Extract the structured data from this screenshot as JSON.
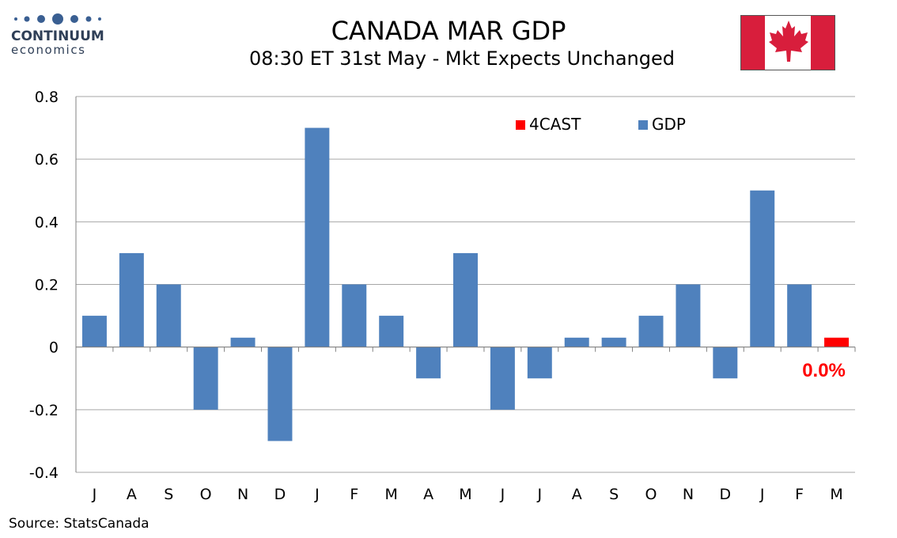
{
  "brand": {
    "name": "CONTINUUM",
    "sub": "economics"
  },
  "colors": {
    "gdp": "#4f81bd",
    "forecast": "#ff0000",
    "flag_red": "#d81e3c",
    "logo": "#3a5f92"
  },
  "icons": {
    "flag": "canada-flag-icon"
  },
  "footer": {
    "source": "Source: StatsCanada"
  },
  "chart_data": {
    "type": "bar",
    "title": "CANADA MAR GDP",
    "subtitle": "08:30 ET 31st May - Mkt Expects Unchanged",
    "categories": [
      "J",
      "A",
      "S",
      "O",
      "N",
      "D",
      "J",
      "F",
      "M",
      "A",
      "M",
      "J",
      "J",
      "A",
      "S",
      "O",
      "N",
      "D",
      "J",
      "F",
      "M"
    ],
    "series": [
      {
        "name": "4CAST",
        "color": "#ff0000",
        "values": [
          null,
          null,
          null,
          null,
          null,
          null,
          null,
          null,
          null,
          null,
          null,
          null,
          null,
          null,
          null,
          null,
          null,
          null,
          null,
          null,
          0.03
        ]
      },
      {
        "name": "GDP",
        "color": "#4f81bd",
        "values": [
          0.1,
          0.3,
          0.2,
          -0.2,
          0.03,
          -0.3,
          0.7,
          0.2,
          0.1,
          -0.1,
          0.3,
          -0.2,
          -0.1,
          0.03,
          0.03,
          0.1,
          0.2,
          -0.1,
          0.5,
          0.2,
          null
        ]
      }
    ],
    "ylim": [
      -0.4,
      0.8
    ],
    "yticks": [
      -0.4,
      -0.2,
      0,
      0.2,
      0.4,
      0.6,
      0.8
    ],
    "grid": true,
    "legend_position": "top-right",
    "annotation": {
      "text": "0.0%",
      "category_index": 20
    }
  }
}
